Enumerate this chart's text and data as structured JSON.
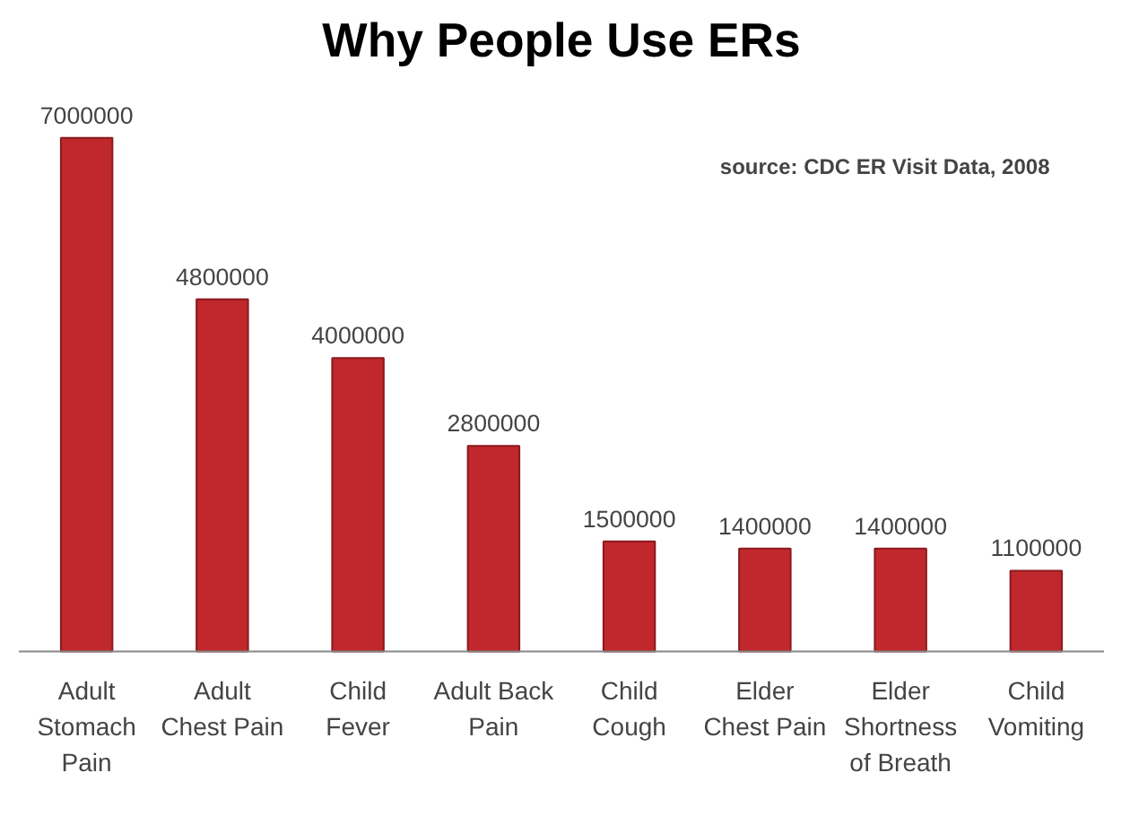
{
  "chart_data": {
    "type": "bar",
    "title": "Why People Use ERs",
    "categories": [
      "Adult Stomach Pain",
      "Adult Chest Pain",
      "Child Fever",
      "Adult Back Pain",
      "Child Cough",
      "Elder Chest Pain",
      "Elder Shortness of Breath",
      "Child Vomiting"
    ],
    "values": [
      7000000,
      4800000,
      4000000,
      2800000,
      1500000,
      1400000,
      1400000,
      1100000
    ],
    "color": "#c0282e",
    "data_labels": true,
    "annotations": [
      "source: CDC ER Visit Data, 2008"
    ]
  }
}
